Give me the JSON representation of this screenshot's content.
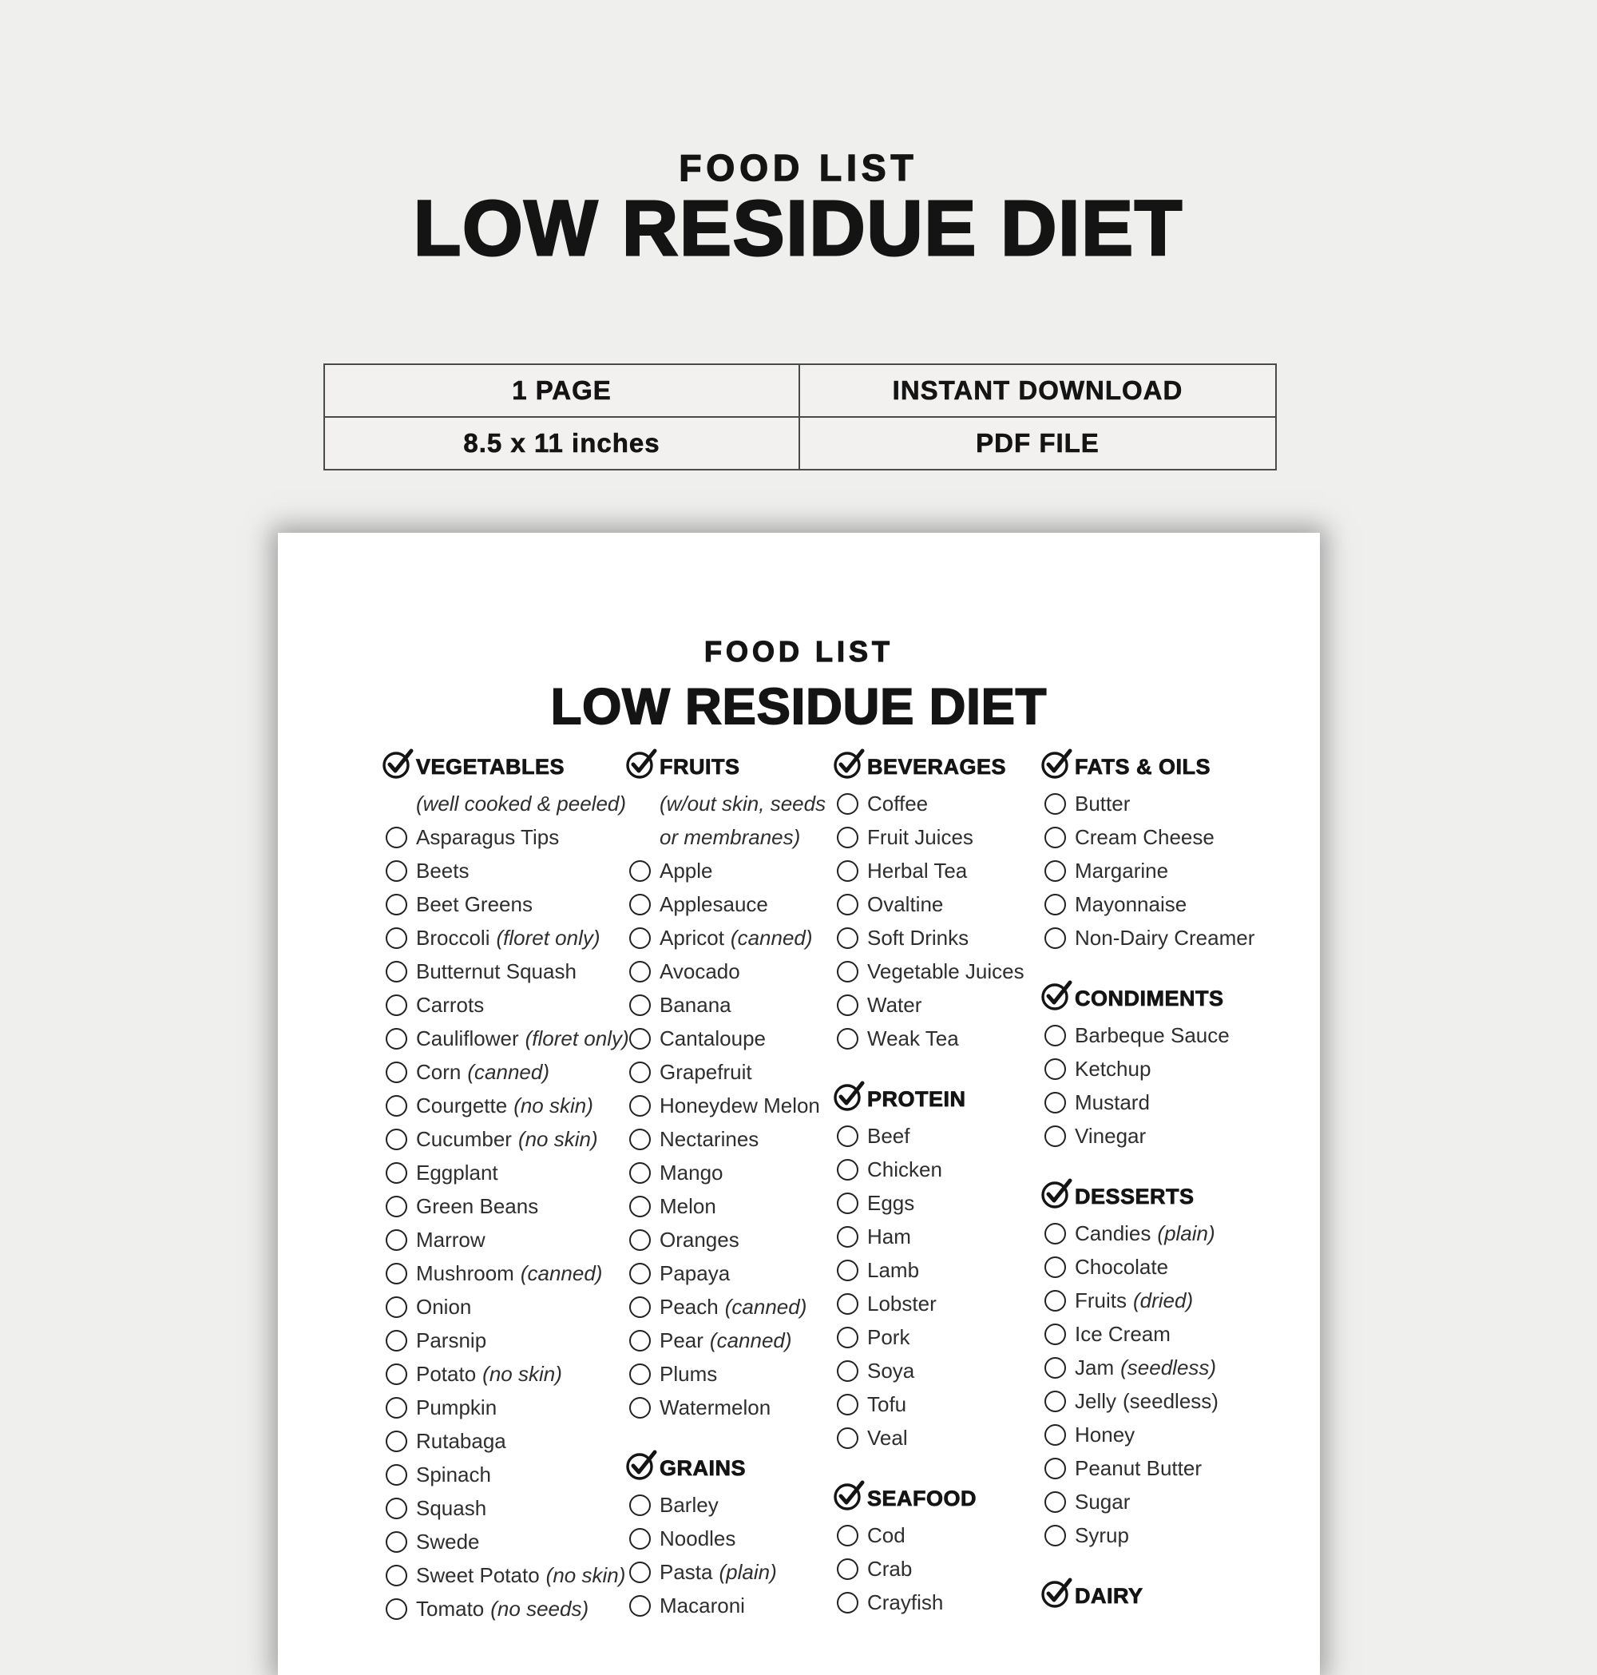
{
  "hero": {
    "title_small": "FOOD LIST",
    "title_large": "LOW RESIDUE DIET"
  },
  "info_table": {
    "rows": [
      [
        "1 PAGE",
        "INSTANT DOWNLOAD"
      ],
      [
        "8.5 x 11 inches",
        "PDF FILE"
      ]
    ]
  },
  "paper": {
    "title_small": "FOOD LIST",
    "title_large": "LOW RESIDUE DIET",
    "columns": [
      {
        "sections": [
          {
            "name": "VEGETABLES",
            "subtitle": [
              "(well cooked & peeled)"
            ],
            "items": [
              {
                "label": "Asparagus Tips"
              },
              {
                "label": "Beets"
              },
              {
                "label": "Beet Greens"
              },
              {
                "label": "Broccoli",
                "note": "(floret only)",
                "note_italic": true
              },
              {
                "label": "Butternut Squash"
              },
              {
                "label": "Carrots"
              },
              {
                "label": "Cauliflower",
                "note": "(floret only)",
                "note_italic": true
              },
              {
                "label": "Corn",
                "note": "(canned)",
                "note_italic": true
              },
              {
                "label": "Courgette",
                "note": "(no skin)",
                "note_italic": true
              },
              {
                "label": "Cucumber",
                "note": "(no skin)",
                "note_italic": true
              },
              {
                "label": "Eggplant"
              },
              {
                "label": "Green Beans"
              },
              {
                "label": "Marrow"
              },
              {
                "label": "Mushroom",
                "note": "(canned)",
                "note_italic": true
              },
              {
                "label": "Onion"
              },
              {
                "label": "Parsnip"
              },
              {
                "label": "Potato",
                "note": "(no skin)",
                "note_italic": true
              },
              {
                "label": "Pumpkin"
              },
              {
                "label": "Rutabaga"
              },
              {
                "label": "Spinach"
              },
              {
                "label": "Squash"
              },
              {
                "label": "Swede"
              },
              {
                "label": "Sweet Potato",
                "note": "(no skin)",
                "note_italic": true
              },
              {
                "label": "Tomato",
                "note": "(no seeds)",
                "note_italic": true
              }
            ]
          }
        ]
      },
      {
        "sections": [
          {
            "name": "FRUITS",
            "subtitle": [
              "(w/out skin, seeds",
              "or membranes)"
            ],
            "items": [
              {
                "label": "Apple"
              },
              {
                "label": "Applesauce"
              },
              {
                "label": "Apricot",
                "note": "(canned)",
                "note_italic": true
              },
              {
                "label": "Avocado"
              },
              {
                "label": "Banana"
              },
              {
                "label": "Cantaloupe"
              },
              {
                "label": "Grapefruit"
              },
              {
                "label": "Honeydew Melon"
              },
              {
                "label": "Nectarines"
              },
              {
                "label": "Mango"
              },
              {
                "label": "Melon"
              },
              {
                "label": "Oranges"
              },
              {
                "label": "Papaya"
              },
              {
                "label": "Peach",
                "note": "(canned)",
                "note_italic": true
              },
              {
                "label": "Pear",
                "note": "(canned)",
                "note_italic": true
              },
              {
                "label": "Plums"
              },
              {
                "label": "Watermelon"
              }
            ]
          },
          {
            "name": "GRAINS",
            "subtitle": [],
            "items": [
              {
                "label": "Barley"
              },
              {
                "label": "Noodles"
              },
              {
                "label": "Pasta",
                "note": "(plain)",
                "note_italic": true
              },
              {
                "label": "Macaroni"
              }
            ]
          }
        ]
      },
      {
        "sections": [
          {
            "name": "BEVERAGES",
            "subtitle": [],
            "items": [
              {
                "label": "Coffee"
              },
              {
                "label": "Fruit Juices"
              },
              {
                "label": "Herbal Tea"
              },
              {
                "label": "Ovaltine"
              },
              {
                "label": "Soft Drinks"
              },
              {
                "label": "Vegetable Juices"
              },
              {
                "label": "Water"
              },
              {
                "label": "Weak Tea"
              }
            ]
          },
          {
            "name": "PROTEIN",
            "subtitle": [],
            "items": [
              {
                "label": "Beef"
              },
              {
                "label": "Chicken"
              },
              {
                "label": "Eggs"
              },
              {
                "label": "Ham"
              },
              {
                "label": "Lamb"
              },
              {
                "label": "Lobster"
              },
              {
                "label": "Pork"
              },
              {
                "label": "Soya"
              },
              {
                "label": "Tofu"
              },
              {
                "label": "Veal"
              }
            ]
          },
          {
            "name": "SEAFOOD",
            "subtitle": [],
            "items": [
              {
                "label": "Cod"
              },
              {
                "label": "Crab"
              },
              {
                "label": "Crayfish"
              }
            ]
          }
        ]
      },
      {
        "sections": [
          {
            "name": "FATS & OILS",
            "subtitle": [],
            "items": [
              {
                "label": "Butter"
              },
              {
                "label": "Cream Cheese"
              },
              {
                "label": "Margarine"
              },
              {
                "label": "Mayonnaise"
              },
              {
                "label": "Non-Dairy Creamer"
              }
            ]
          },
          {
            "name": "CONDIMENTS",
            "subtitle": [],
            "items": [
              {
                "label": "Barbeque Sauce"
              },
              {
                "label": "Ketchup"
              },
              {
                "label": "Mustard"
              },
              {
                "label": "Vinegar"
              }
            ]
          },
          {
            "name": "DESSERTS",
            "subtitle": [],
            "items": [
              {
                "label": "Candies",
                "note": "(plain)",
                "note_italic": true
              },
              {
                "label": "Chocolate"
              },
              {
                "label": "Fruits",
                "note": "(dried)",
                "note_italic": true
              },
              {
                "label": "Ice Cream"
              },
              {
                "label": "Jam",
                "note": "(seedless)",
                "note_italic": true
              },
              {
                "label": "Jelly",
                "note": "(seedless)",
                "note_italic": false
              },
              {
                "label": "Honey"
              },
              {
                "label": "Peanut Butter"
              },
              {
                "label": "Sugar"
              },
              {
                "label": "Syrup"
              }
            ]
          },
          {
            "name": "DAIRY",
            "subtitle": [],
            "items": []
          }
        ]
      }
    ]
  }
}
